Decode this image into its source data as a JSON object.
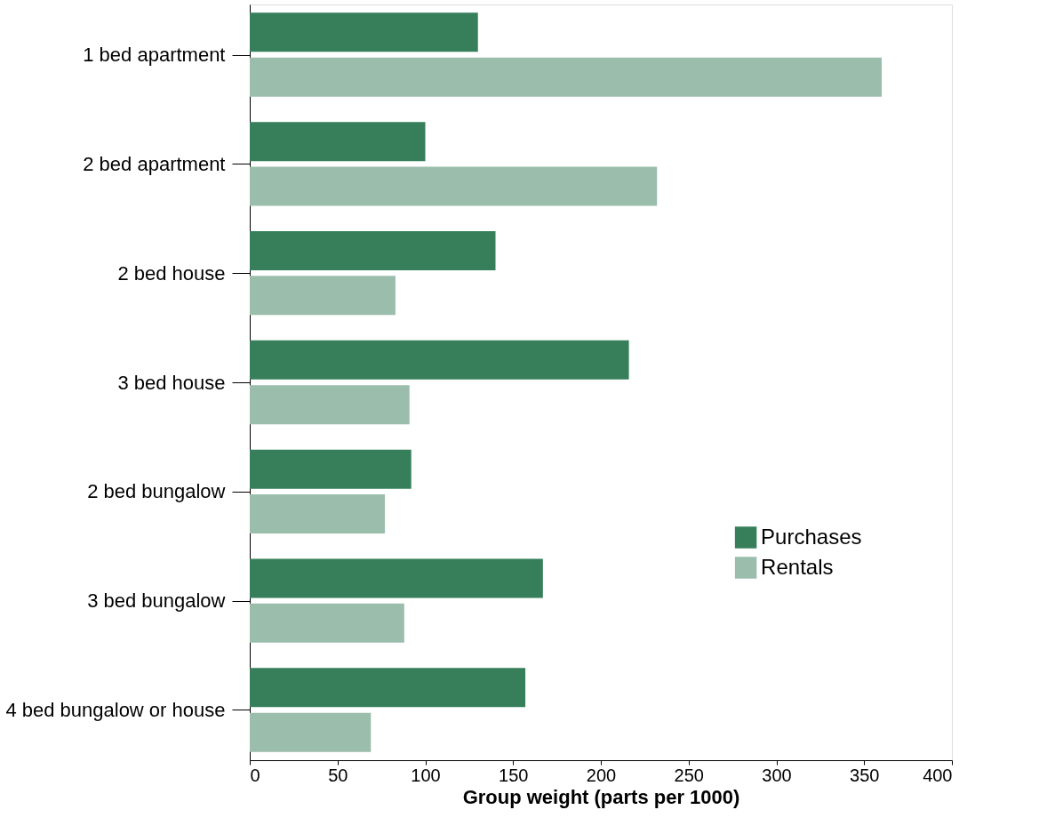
{
  "chart_data": {
    "type": "bar",
    "orientation": "horizontal",
    "xlabel": "Group weight (parts per 1000)",
    "categories": [
      "1 bed apartment",
      "2 bed apartment",
      "2 bed house",
      "3 bed house",
      "2 bed bungalow",
      "3 bed bungalow",
      "4 bed bungalow or house"
    ],
    "series": [
      {
        "name": "Purchases",
        "color": "#367f5a",
        "values": [
          130,
          100,
          140,
          216,
          92,
          167,
          157
        ]
      },
      {
        "name": "Rentals",
        "color": "#9bbdac",
        "values": [
          360,
          232,
          83,
          91,
          77,
          88,
          69
        ]
      }
    ],
    "xlim": [
      0,
      400
    ],
    "xticks": [
      0,
      50,
      100,
      150,
      200,
      250,
      300,
      350,
      400
    ],
    "grid": false,
    "legend": "right"
  }
}
